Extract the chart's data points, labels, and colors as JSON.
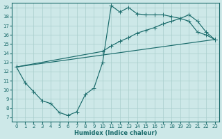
{
  "xlabel": "Humidex (Indice chaleur)",
  "bg_color": "#cde8e8",
  "line_color": "#1a6b6b",
  "grid_color": "#a8cecc",
  "xlim": [
    -0.5,
    23.5
  ],
  "ylim": [
    6.5,
    19.5
  ],
  "xticks": [
    0,
    1,
    2,
    3,
    4,
    5,
    6,
    7,
    8,
    9,
    10,
    11,
    12,
    13,
    14,
    15,
    16,
    17,
    18,
    19,
    20,
    21,
    22,
    23
  ],
  "yticks": [
    7,
    8,
    9,
    10,
    11,
    12,
    13,
    14,
    15,
    16,
    17,
    18,
    19
  ],
  "line1_x": [
    0,
    1,
    2,
    3,
    4,
    5,
    6,
    7,
    8,
    9,
    10,
    11,
    12,
    13,
    14,
    15,
    16,
    17,
    18,
    19,
    20,
    21,
    22,
    23
  ],
  "line1_y": [
    12.5,
    10.8,
    9.8,
    8.8,
    8.5,
    7.5,
    7.2,
    7.6,
    9.5,
    10.2,
    13.0,
    19.2,
    18.5,
    19.0,
    18.3,
    18.2,
    18.2,
    18.2,
    18.0,
    17.8,
    17.5,
    16.3,
    16.0,
    15.5
  ],
  "line2_x": [
    0,
    10,
    11,
    12,
    13,
    14,
    15,
    16,
    17,
    18,
    19,
    20,
    21,
    22,
    23
  ],
  "line2_y": [
    12.5,
    14.2,
    14.8,
    15.3,
    15.7,
    16.2,
    16.5,
    16.8,
    17.2,
    17.5,
    17.8,
    18.2,
    17.5,
    16.3,
    15.5
  ],
  "line3_x": [
    0,
    23
  ],
  "line3_y": [
    12.5,
    15.5
  ]
}
